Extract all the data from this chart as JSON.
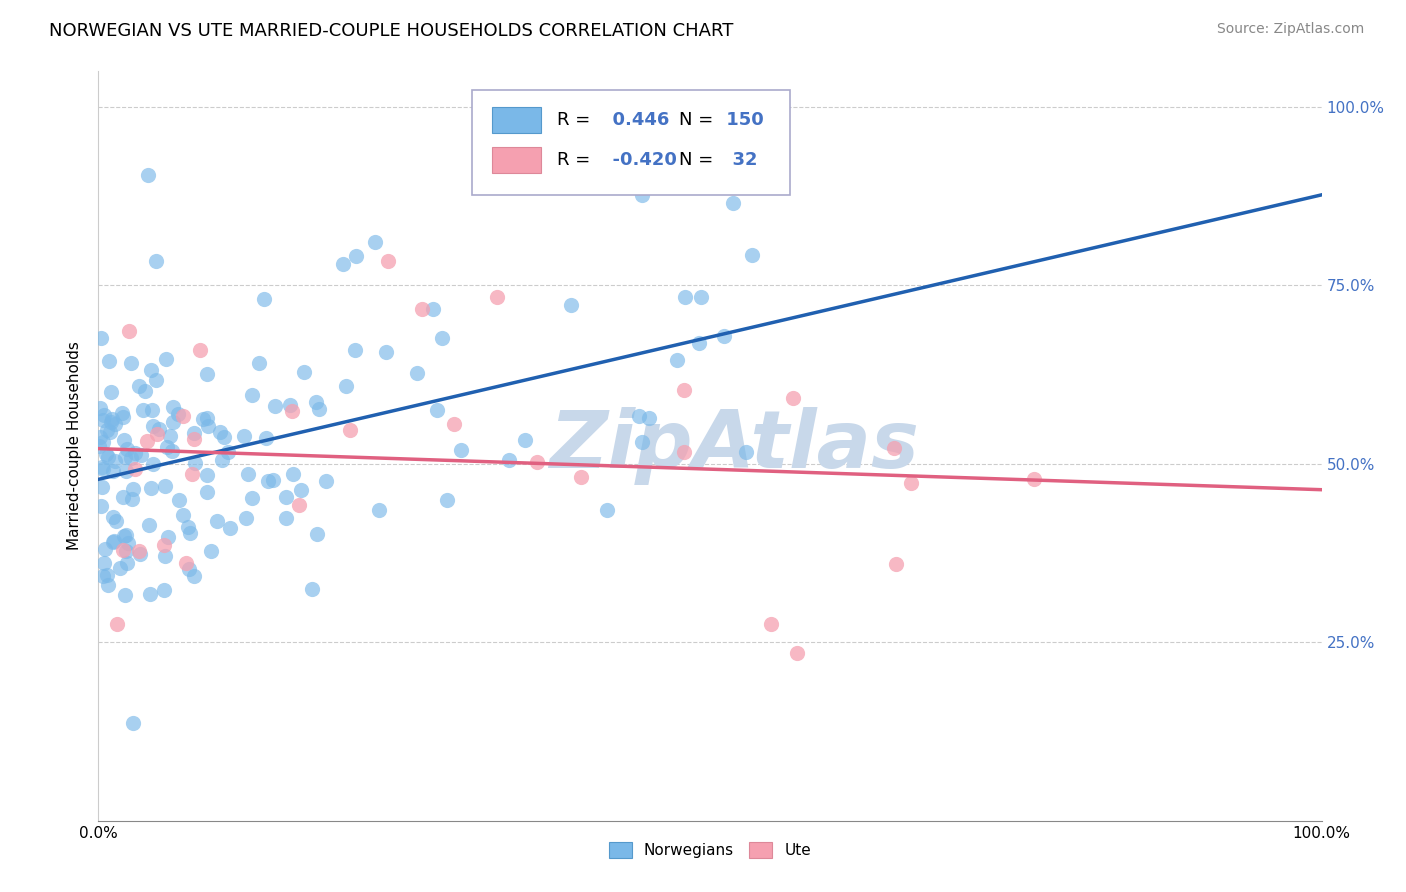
{
  "title": "NORWEGIAN VS UTE MARRIED-COUPLE HOUSEHOLDS CORRELATION CHART",
  "source": "Source: ZipAtlas.com",
  "ylabel": "Married-couple Households",
  "xlim": [
    0.0,
    1.0
  ],
  "ylim": [
    0.0,
    1.05
  ],
  "yticks": [
    0.0,
    0.25,
    0.5,
    0.75,
    1.0
  ],
  "ytick_labels_right": [
    "",
    "25.0%",
    "50.0%",
    "75.0%",
    "100.0%"
  ],
  "xticks": [
    0.0,
    0.1,
    0.2,
    0.3,
    0.4,
    0.5,
    0.6,
    0.7,
    0.8,
    0.9,
    1.0
  ],
  "xtick_labels": [
    "0.0%",
    "",
    "",
    "",
    "",
    "",
    "",
    "",
    "",
    "",
    "100.0%"
  ],
  "norwegian_R": 0.446,
  "norwegian_N": 150,
  "ute_R": -0.42,
  "ute_N": 32,
  "norwegian_color": "#7ab8e8",
  "ute_color": "#f5a0b0",
  "norwegian_line_color": "#2060b0",
  "ute_line_color": "#e06080",
  "background_color": "#ffffff",
  "grid_color": "#cccccc",
  "watermark": "ZipAtlas",
  "watermark_color": "#c8d8ea",
  "title_fontsize": 13,
  "source_fontsize": 10,
  "axis_label_fontsize": 11,
  "tick_fontsize": 11,
  "right_tick_color": "#4472c4",
  "norwegian_scatter_seed": 42,
  "ute_scatter_seed": 123,
  "legend_norw_label": "Norwegians",
  "legend_ute_label": "Ute"
}
